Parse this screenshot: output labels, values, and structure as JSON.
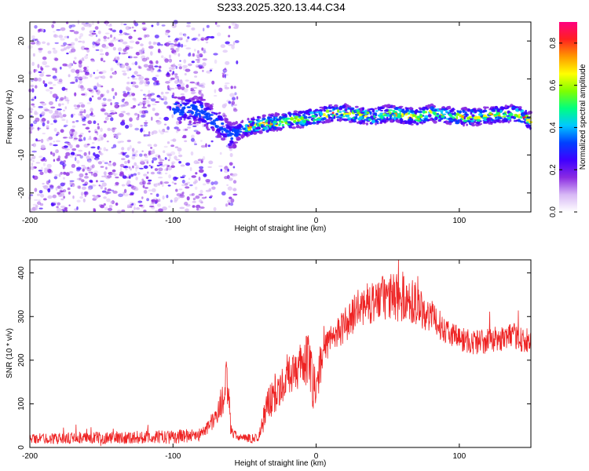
{
  "title": "S233.2025.320.13.44.C34",
  "chart_data": [
    {
      "type": "heatmap",
      "name": "spectrogram",
      "xlabel": "Height of straight line (km)",
      "ylabel": "Frequency (Hz)",
      "xlim": [
        -200,
        150
      ],
      "ylim": [
        -25,
        25
      ],
      "xticks": [
        -200,
        -100,
        0,
        100
      ],
      "yticks": [
        -20,
        -10,
        0,
        10,
        20
      ],
      "noise_region_km": [
        -200,
        -55
      ],
      "trace_start_km": -100,
      "trace": {
        "x": [
          -100,
          -90,
          -80,
          -75,
          -70,
          -65,
          -60,
          -55,
          -50,
          -45,
          -40,
          -30,
          -20,
          -10,
          0,
          10,
          20,
          30,
          40,
          50,
          60,
          70,
          80,
          90,
          100,
          110,
          120,
          130,
          140,
          150
        ],
        "freq_hz": [
          2,
          2,
          1.5,
          0,
          -1,
          -3,
          -5,
          -4,
          -3,
          -2.5,
          -2,
          -1.5,
          -1,
          -0.5,
          0,
          1,
          1,
          0.5,
          0,
          1,
          0.5,
          0,
          1,
          0.5,
          0,
          0,
          0.5,
          0.5,
          1,
          -1
        ]
      },
      "colorbar": {
        "label": "Normalized spectral amplitude",
        "range": [
          0.0,
          0.9
        ],
        "ticks": [
          0.0,
          0.2,
          0.4,
          0.6,
          0.8
        ],
        "tick_labels": [
          "0.0",
          "0.2",
          "0.4",
          "0.6",
          "0.8"
        ],
        "colors": [
          "#ffffff",
          "#d7b8f5",
          "#8a2be2",
          "#3f00ff",
          "#0040ff",
          "#00c8ff",
          "#00ff80",
          "#7fff00",
          "#ffff00",
          "#ff9900",
          "#ff2020",
          "#ff0080"
        ]
      }
    },
    {
      "type": "line",
      "name": "snr",
      "xlabel": "Height of straight line (km)",
      "ylabel": "SNR (10 * v/v)",
      "xlim": [
        -200,
        150
      ],
      "ylim": [
        0,
        430
      ],
      "xticks": [
        -200,
        -100,
        0,
        100
      ],
      "yticks": [
        0,
        100,
        200,
        300,
        400
      ],
      "color": "#ee2222",
      "envelope": {
        "x": [
          -200,
          -150,
          -100,
          -80,
          -68,
          -66,
          -62,
          -60,
          -58,
          -55,
          -50,
          -40,
          -35,
          -30,
          -20,
          -10,
          -5,
          -2,
          5,
          10,
          20,
          30,
          40,
          50,
          60,
          70,
          80,
          90,
          100,
          110,
          120,
          130,
          140,
          150
        ],
        "mean": [
          20,
          22,
          24,
          30,
          80,
          110,
          150,
          60,
          30,
          25,
          20,
          22,
          90,
          120,
          160,
          190,
          200,
          130,
          210,
          250,
          280,
          320,
          335,
          345,
          345,
          330,
          300,
          270,
          250,
          240,
          245,
          250,
          255,
          235
        ],
        "amp": [
          12,
          14,
          16,
          15,
          30,
          40,
          60,
          30,
          12,
          10,
          10,
          12,
          40,
          45,
          45,
          50,
          70,
          60,
          40,
          35,
          40,
          45,
          50,
          55,
          60,
          50,
          40,
          30,
          30,
          30,
          30,
          30,
          30,
          35
        ]
      }
    }
  ]
}
